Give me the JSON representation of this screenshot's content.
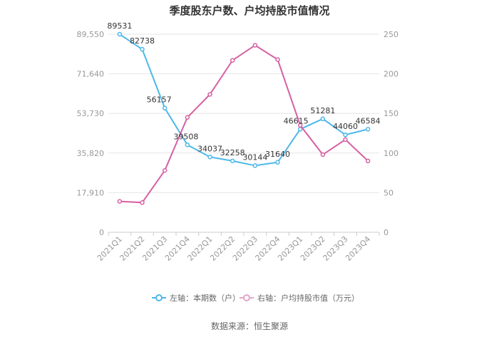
{
  "chart_data": {
    "type": "line",
    "title": "季度股东户数、户均持股市值情况",
    "categories": [
      "2021Q1",
      "2021Q2",
      "2021Q3",
      "2021Q4",
      "2022Q1",
      "2022Q2",
      "2022Q3",
      "2022Q4",
      "2023Q1",
      "2023Q2",
      "2023Q3",
      "2023Q4"
    ],
    "y_left": {
      "min": 0,
      "max": 89550,
      "ticks": [
        "0",
        "17,910",
        "35,820",
        "53,730",
        "71,640",
        "89,550"
      ],
      "tick_values": [
        0,
        17910,
        35820,
        53730,
        71640,
        89550
      ]
    },
    "y_right": {
      "min": 0,
      "max": 250,
      "ticks": [
        "0",
        "50",
        "100",
        "150",
        "200",
        "250"
      ],
      "tick_values": [
        0,
        50,
        100,
        150,
        200,
        250
      ]
    },
    "series": [
      {
        "name": "左轴：本期数（户）",
        "axis": "left",
        "color": "#4db8ea",
        "values": [
          89531,
          82738,
          56157,
          39508,
          34037,
          32258,
          30144,
          31640,
          46615,
          51281,
          44060,
          46584
        ],
        "labels": [
          "89531",
          "82738",
          "56157",
          "39508",
          "34037",
          "32258",
          "30144",
          "31640",
          "46615",
          "51281",
          "44060",
          "46584"
        ]
      },
      {
        "name": "右轴：户均持股市值（万元）",
        "axis": "right",
        "color": "#d660a3",
        "values": [
          39,
          37.5,
          78,
          145,
          174,
          217,
          236,
          218,
          135,
          98,
          117,
          90
        ]
      }
    ],
    "legend_position": "bottom",
    "grid": true
  },
  "footer": {
    "source": "数据来源：恒生聚源"
  }
}
